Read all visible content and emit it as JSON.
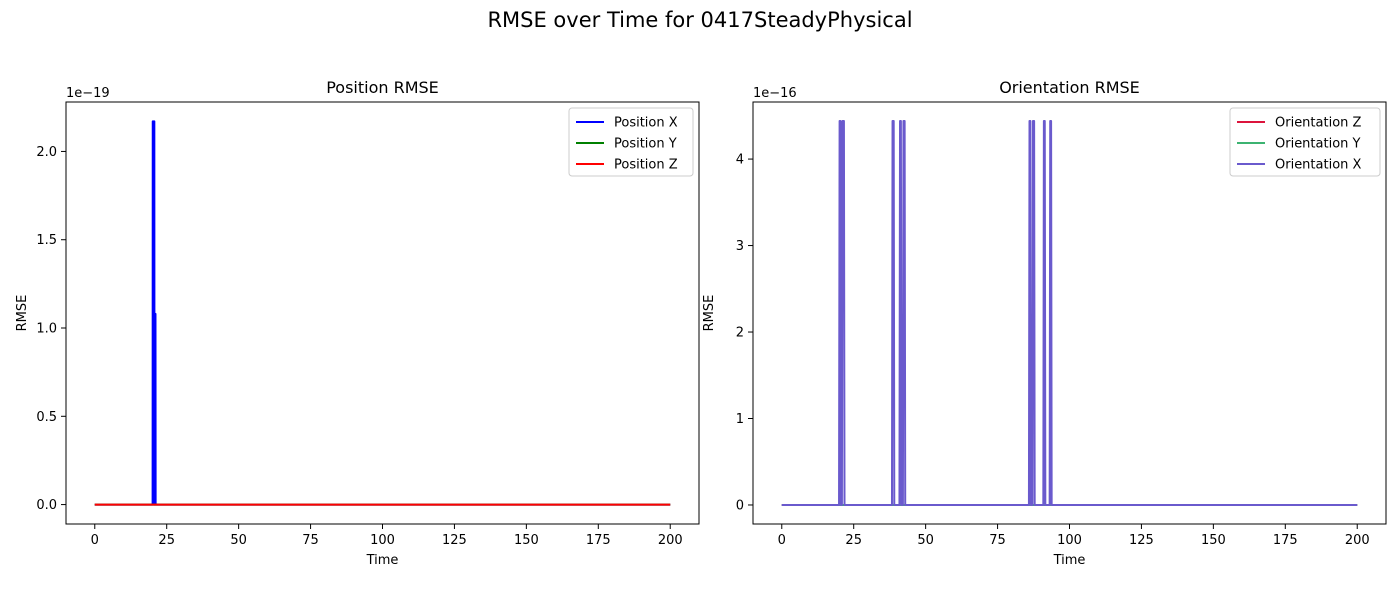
{
  "figure": {
    "title": "RMSE over Time for 0417SteadyPhysical"
  },
  "chart_data": [
    {
      "type": "line",
      "title": "Position RMSE",
      "xlabel": "Time",
      "ylabel": "RMSE",
      "offset_text": "1e−19",
      "xlim": [
        -10,
        210
      ],
      "ylim": [
        -0.11,
        2.28
      ],
      "x_ticks": [
        0,
        25,
        50,
        75,
        100,
        125,
        150,
        175,
        200
      ],
      "x_tick_labels": [
        "0",
        "25",
        "50",
        "75",
        "100",
        "125",
        "150",
        "175",
        "200"
      ],
      "y_ticks": [
        0,
        0.5,
        1,
        1.5,
        2
      ],
      "y_tick_labels": [
        "0.0",
        "0.5",
        "1.0",
        "1.5",
        "2.0"
      ],
      "legend_position": "top-right",
      "grid": false,
      "series": [
        {
          "name": "Position X",
          "color": "#0000ff",
          "x": [
            0,
            20.1,
            20.15,
            20.4,
            20.45,
            20.5,
            20.55,
            20.7,
            20.75,
            20.95,
            21.0,
            21.1,
            21.15,
            200
          ],
          "y": [
            0,
            0,
            2.17,
            2.17,
            0,
            0,
            2.17,
            2.17,
            0,
            0,
            1.08,
            1.08,
            0,
            0
          ]
        },
        {
          "name": "Position Y",
          "color": "#008000",
          "x": [
            0,
            200
          ],
          "y": [
            0,
            0
          ]
        },
        {
          "name": "Position Z",
          "color": "#ff0000",
          "x": [
            0,
            200
          ],
          "y": [
            0,
            0
          ]
        }
      ]
    },
    {
      "type": "line",
      "title": "Orientation RMSE",
      "xlabel": "Time",
      "ylabel": "RMSE",
      "offset_text": "1e−16",
      "xlim": [
        -10,
        210
      ],
      "ylim": [
        -0.22,
        4.66
      ],
      "x_ticks": [
        0,
        25,
        50,
        75,
        100,
        125,
        150,
        175,
        200
      ],
      "x_tick_labels": [
        "0",
        "25",
        "50",
        "75",
        "100",
        "125",
        "150",
        "175",
        "200"
      ],
      "y_ticks": [
        0,
        1,
        2,
        3,
        4
      ],
      "y_tick_labels": [
        "0",
        "1",
        "2",
        "3",
        "4"
      ],
      "legend_position": "top-right",
      "grid": false,
      "series": [
        {
          "name": "Orientation Z",
          "color": "#dc143c",
          "x": [
            0,
            200
          ],
          "y": [
            0,
            0
          ]
        },
        {
          "name": "Orientation Y",
          "color": "#3cb371",
          "x": [
            0,
            200
          ],
          "y": [
            0,
            0
          ]
        },
        {
          "name": "Orientation X",
          "color": "#6a5acd",
          "x": [
            0,
            19.9,
            20.1,
            20.4,
            20.6,
            20.9,
            21.1,
            21.6,
            21.8,
            38.3,
            38.5,
            38.9,
            39.1,
            40.9,
            41.1,
            41.4,
            41.6,
            42.1,
            42.3,
            42.7,
            42.9,
            85.9,
            86.1,
            86.4,
            86.6,
            87.1,
            87.3,
            87.7,
            87.9,
            90.9,
            91.1,
            91.4,
            91.6,
            93.1,
            93.3,
            93.6,
            93.8,
            200
          ],
          "y": [
            0,
            0,
            4.44,
            4.44,
            0,
            0,
            4.44,
            4.44,
            0,
            0,
            4.44,
            4.44,
            0,
            0,
            4.44,
            4.44,
            0,
            0,
            4.44,
            4.44,
            0,
            0,
            4.44,
            4.44,
            0,
            0,
            4.44,
            4.44,
            0,
            0,
            4.44,
            4.44,
            0,
            0,
            4.44,
            4.44,
            0,
            0
          ]
        }
      ]
    }
  ]
}
